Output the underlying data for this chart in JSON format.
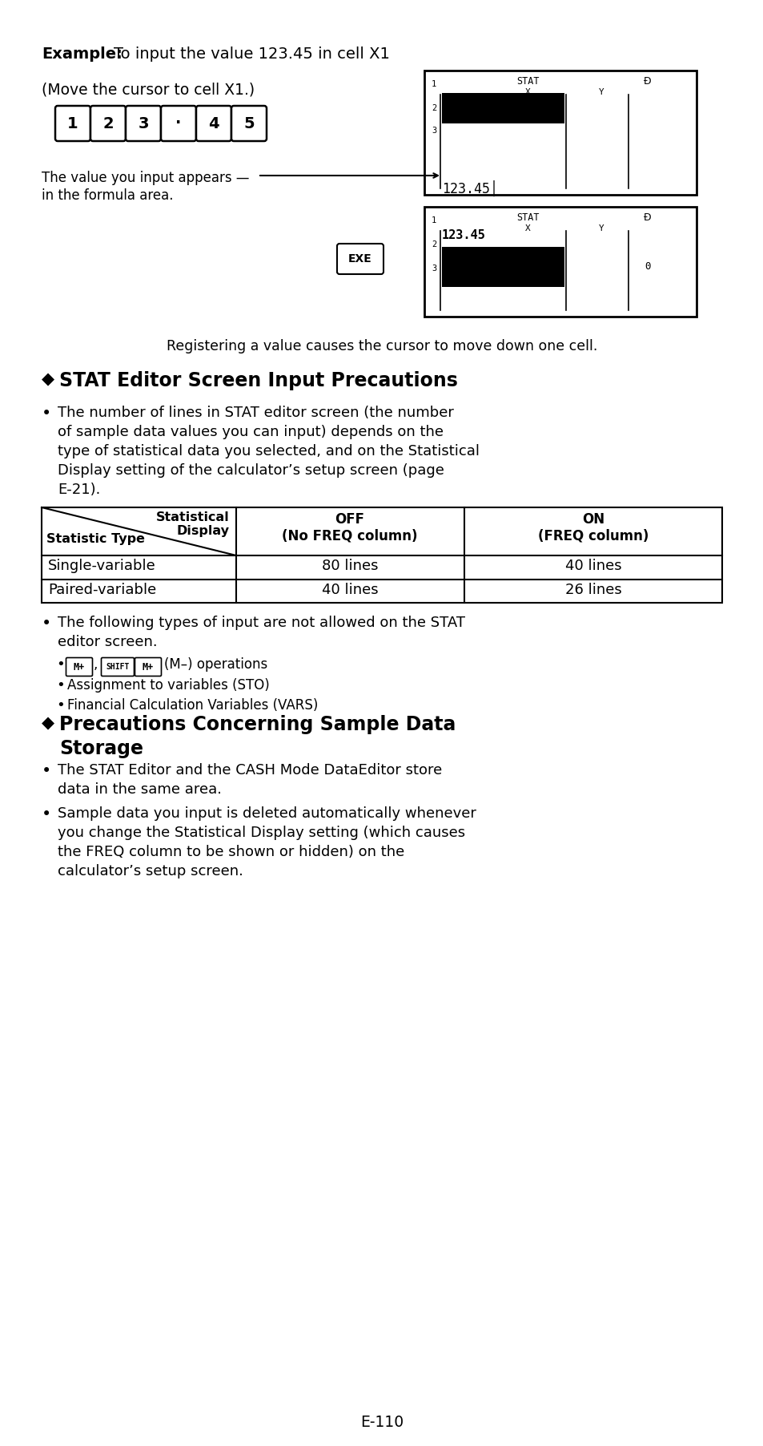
{
  "bg_color": "#ffffff",
  "text_color": "#000000",
  "page_number": "E-110",
  "keys": [
    "1",
    "2",
    "3",
    "·",
    "4",
    "5"
  ],
  "register_text": "Registering a value causes the cursor to move down one cell.",
  "section1_title": "STAT Editor Screen Input Precautions",
  "bullet1_lines": [
    "The number of lines in STAT editor screen (the number",
    "of sample data values you can input) depends on the",
    "type of statistical data you selected, and on the Statistical",
    "Display setting of the calculator’s setup screen (page",
    "E-21)."
  ],
  "table_rows": [
    [
      "Single-variable",
      "80 lines",
      "40 lines"
    ],
    [
      "Paired-variable",
      "40 lines",
      "26 lines"
    ]
  ],
  "bullet2_lines": [
    "The following types of input are not allowed on the STAT",
    "editor screen."
  ],
  "section2_line1": "Precautions Concerning Sample Data",
  "section2_line2": "Storage",
  "bullet3_lines": [
    "The STAT Editor and the CASH Mode DataEditor store",
    "data in the same area."
  ],
  "bullet4_lines": [
    "Sample data you input is deleted automatically whenever",
    "you change the Statistical Display setting (which causes",
    "the FREQ column to be shown or hidden) on the",
    "calculator’s setup screen."
  ]
}
